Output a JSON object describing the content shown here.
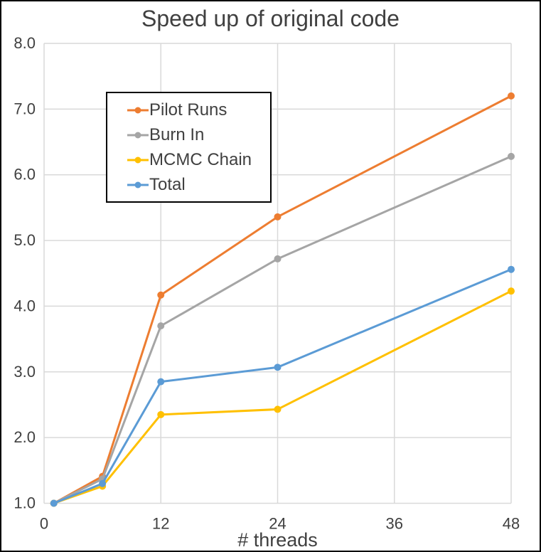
{
  "chart_data": {
    "type": "line",
    "title": "Speed up of original code",
    "xlabel": "# threads",
    "ylabel": "",
    "x": [
      1,
      6,
      12,
      24,
      48
    ],
    "series": [
      {
        "name": "Pilot Runs",
        "color": "#ED7D31",
        "values": [
          1.0,
          1.41,
          4.17,
          5.36,
          7.2
        ]
      },
      {
        "name": "Burn In",
        "color": "#A5A5A5",
        "values": [
          1.0,
          1.37,
          3.7,
          4.72,
          6.28
        ]
      },
      {
        "name": "MCMC Chain",
        "color": "#FFC000",
        "values": [
          1.0,
          1.26,
          2.35,
          2.43,
          4.23
        ]
      },
      {
        "name": "Total",
        "color": "#5B9BD5",
        "values": [
          1.0,
          1.3,
          2.85,
          3.07,
          4.56
        ]
      }
    ],
    "xlim": [
      0,
      48
    ],
    "ylim": [
      1.0,
      8.0
    ],
    "x_ticks": {
      "values": [
        0,
        12,
        24,
        36,
        48
      ],
      "labels": [
        "0",
        "12",
        "24",
        "36",
        "48"
      ]
    },
    "y_ticks": {
      "values": [
        1,
        2,
        3,
        4,
        5,
        6,
        7,
        8
      ],
      "labels": [
        "1.0",
        "2.0",
        "3.0",
        "4.0",
        "5.0",
        "6.0",
        "7.0",
        "8.0"
      ]
    },
    "grid": true,
    "legend_position": "top-left-inside",
    "colors": {
      "grid": "#D9D9D9",
      "text": "#404040",
      "background": "#FFFFFF",
      "border": "#000000"
    }
  }
}
